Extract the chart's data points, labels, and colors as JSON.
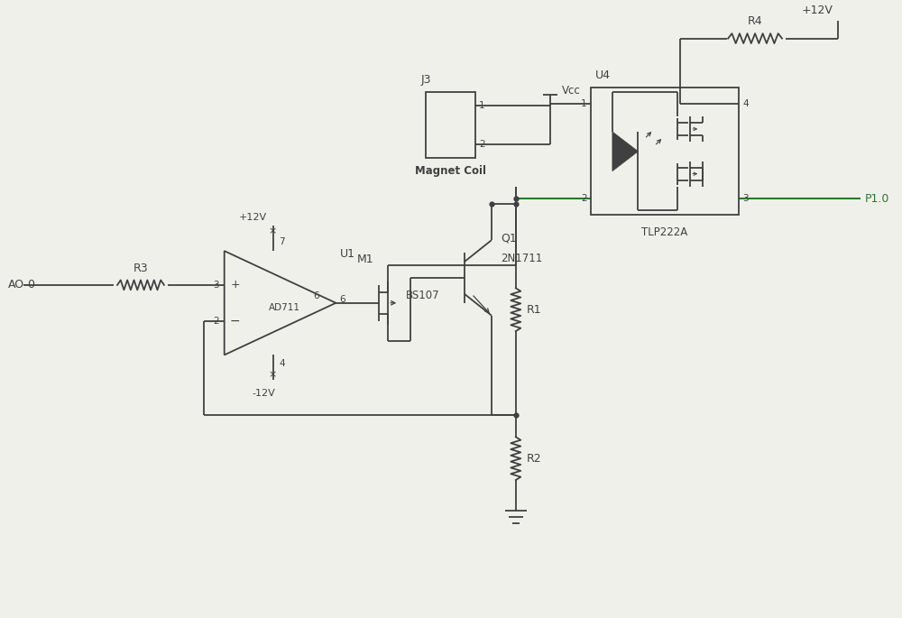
{
  "bg_color": "#f0f0eb",
  "line_color": "#404040",
  "wire_color_green": "#2a7a2a",
  "components": {
    "R3_label": "R3",
    "R1_label": "R1",
    "R2_label": "R2",
    "R4_label": "R4",
    "U1_label": "U1",
    "U4_label": "U4",
    "M1_label": "M1",
    "Q1_label": "Q1",
    "J3_label": "J3",
    "AD711_label": "AD711",
    "BS107_label": "BS107",
    "2N1711_label": "2N1711",
    "TLP222A_label": "TLP222A",
    "MagnetCoil_label": "Magnet Coil",
    "Vcc_label": "Vcc",
    "plus12V_label": "+12V",
    "minus12V_label": "-12V",
    "plus12V_top_label": "+12V",
    "AO0_label": "AO-0",
    "P10_label": "P1.0"
  }
}
